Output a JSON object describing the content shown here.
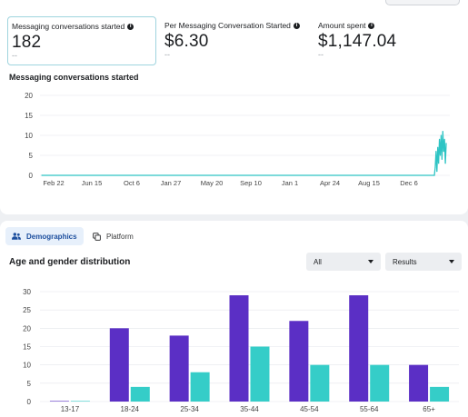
{
  "metrics": [
    {
      "label": "Messaging conversations started",
      "value": "182",
      "compare": "--",
      "selected": true
    },
    {
      "label": "Per Messaging Conversation Started",
      "value": "$6.30",
      "compare": "--",
      "selected": false
    },
    {
      "label": "Amount spent",
      "value": "$1,147.04",
      "compare": "--",
      "selected": false
    }
  ],
  "info_icon_glyph": "i",
  "tabs": {
    "demographics": {
      "label": "Demographics",
      "icon": "people-icon",
      "active": true
    },
    "platform": {
      "label": "Platform",
      "icon": "copy-icon",
      "active": false
    }
  },
  "demographics": {
    "title": "Age and gender distribution",
    "filter_primary": "All",
    "filter_secondary": "Results"
  },
  "colors": {
    "line": "#2ec4c4",
    "bar_primary": "#5b2fc5",
    "bar_secondary": "#35cdc8",
    "grid": "#e4e6eb",
    "accent_tab": "#1d4f9e"
  },
  "chart_data": [
    {
      "type": "line",
      "title": "Messaging conversations started",
      "y_ticks": [
        "0",
        "5",
        "10",
        "15",
        "20"
      ],
      "ylim": [
        0,
        20
      ],
      "x_tick_labels": [
        "Feb 22",
        "Jun 15",
        "Oct 6",
        "Jan 27",
        "May 20",
        "Sep 10",
        "Jan 1",
        "Apr 24",
        "Aug 15",
        "Dec 6"
      ],
      "x": [
        0,
        0.93,
        0.935,
        0.94,
        0.945,
        0.95,
        0.955,
        0.96,
        0.965,
        0.97,
        0.975,
        0.98,
        0.985,
        0.99,
        0.995,
        1.0
      ],
      "y": [
        0,
        0,
        2,
        6,
        1,
        7,
        3,
        9,
        5,
        10,
        4,
        11,
        6,
        9,
        3,
        8
      ],
      "grid": true
    },
    {
      "type": "bar",
      "categories": [
        "13-17",
        "18-24",
        "25-34",
        "35-44",
        "45-54",
        "55-64",
        "65+"
      ],
      "series": [
        {
          "values": [
            0,
            20,
            18,
            29,
            22,
            29,
            10
          ]
        },
        {
          "values": [
            0,
            4,
            8,
            15,
            10,
            10,
            4
          ]
        }
      ],
      "y_ticks": [
        "0",
        "5",
        "10",
        "15",
        "20",
        "25",
        "30"
      ],
      "ylim": [
        0,
        30
      ],
      "grid": true
    }
  ]
}
